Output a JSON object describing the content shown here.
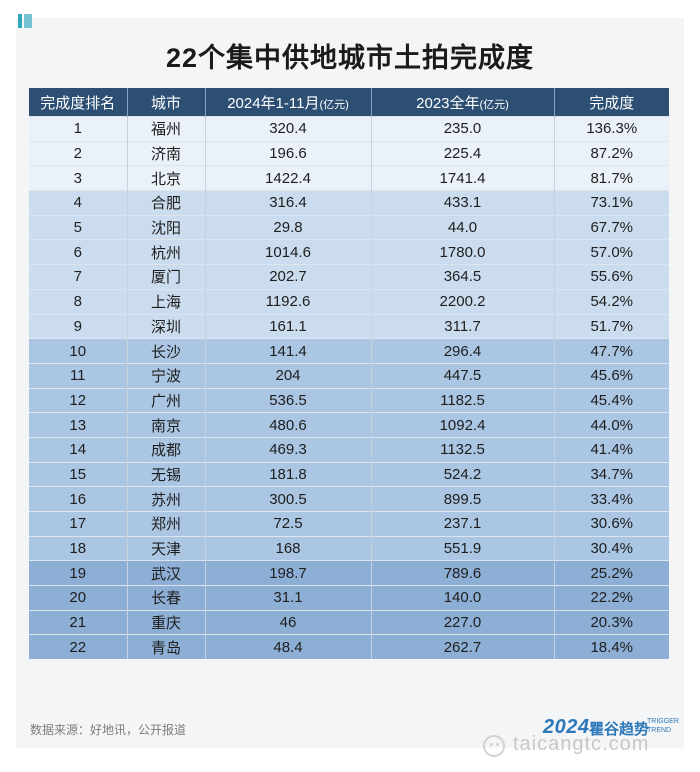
{
  "title": "22个集中供地城市土拍完成度",
  "columns": {
    "rank": "完成度排名",
    "city": "城市",
    "y2024": "2024年1-11月",
    "y2024_unit": "(亿元)",
    "y2023": "2023全年",
    "y2023_unit": "(亿元)",
    "completion": "完成度"
  },
  "chart_data": {
    "type": "table",
    "title": "22个集中供地城市土拍完成度",
    "columns": [
      "完成度排名",
      "城市",
      "2024年1-11月(亿元)",
      "2023全年(亿元)",
      "完成度"
    ],
    "rows": [
      {
        "rank": "1",
        "city": "福州",
        "y2024": "320.4",
        "y2023": "235.0",
        "completion": "136.3%"
      },
      {
        "rank": "2",
        "city": "济南",
        "y2024": "196.6",
        "y2023": "225.4",
        "completion": "87.2%"
      },
      {
        "rank": "3",
        "city": "北京",
        "y2024": "1422.4",
        "y2023": "1741.4",
        "completion": "81.7%"
      },
      {
        "rank": "4",
        "city": "合肥",
        "y2024": "316.4",
        "y2023": "433.1",
        "completion": "73.1%"
      },
      {
        "rank": "5",
        "city": "沈阳",
        "y2024": "29.8",
        "y2023": "44.0",
        "completion": "67.7%"
      },
      {
        "rank": "6",
        "city": "杭州",
        "y2024": "1014.6",
        "y2023": "1780.0",
        "completion": "57.0%"
      },
      {
        "rank": "7",
        "city": "厦门",
        "y2024": "202.7",
        "y2023": "364.5",
        "completion": "55.6%"
      },
      {
        "rank": "8",
        "city": "上海",
        "y2024": "1192.6",
        "y2023": "2200.2",
        "completion": "54.2%"
      },
      {
        "rank": "9",
        "city": "深圳",
        "y2024": "161.1",
        "y2023": "311.7",
        "completion": "51.7%"
      },
      {
        "rank": "10",
        "city": "长沙",
        "y2024": "141.4",
        "y2023": "296.4",
        "completion": "47.7%"
      },
      {
        "rank": "11",
        "city": "宁波",
        "y2024": "204",
        "y2023": "447.5",
        "completion": "45.6%"
      },
      {
        "rank": "12",
        "city": "广州",
        "y2024": "536.5",
        "y2023": "1182.5",
        "completion": "45.4%"
      },
      {
        "rank": "13",
        "city": "南京",
        "y2024": "480.6",
        "y2023": "1092.4",
        "completion": "44.0%"
      },
      {
        "rank": "14",
        "city": "成都",
        "y2024": "469.3",
        "y2023": "1132.5",
        "completion": "41.4%"
      },
      {
        "rank": "15",
        "city": "无锡",
        "y2024": "181.8",
        "y2023": "524.2",
        "completion": "34.7%"
      },
      {
        "rank": "16",
        "city": "苏州",
        "y2024": "300.5",
        "y2023": "899.5",
        "completion": "33.4%"
      },
      {
        "rank": "17",
        "city": "郑州",
        "y2024": "72.5",
        "y2023": "237.1",
        "completion": "30.6%"
      },
      {
        "rank": "18",
        "city": "天津",
        "y2024": "168",
        "y2023": "551.9",
        "completion": "30.4%"
      },
      {
        "rank": "19",
        "city": "武汉",
        "y2024": "198.7",
        "y2023": "789.6",
        "completion": "25.2%"
      },
      {
        "rank": "20",
        "city": "长春",
        "y2024": "31.1",
        "y2023": "140.0",
        "completion": "22.2%"
      },
      {
        "rank": "21",
        "city": "重庆",
        "y2024": "46",
        "y2023": "227.0",
        "completion": "20.3%"
      },
      {
        "rank": "22",
        "city": "青岛",
        "y2024": "48.4",
        "y2023": "262.7",
        "completion": "18.4%"
      }
    ],
    "row_tier_colors": [
      "#eaf1f9",
      "#cbdcee",
      "#aac6e3",
      "#8daed5"
    ],
    "header_color": "#2c4f73"
  },
  "source": "数据来源：好地讯，公开报道",
  "brand": {
    "year": "2024",
    "name": "瞿谷趋势",
    "en_line1": "TRIGGER",
    "en_line2": "TREND"
  },
  "watermark": {
    "text": "taicangtc.com"
  }
}
